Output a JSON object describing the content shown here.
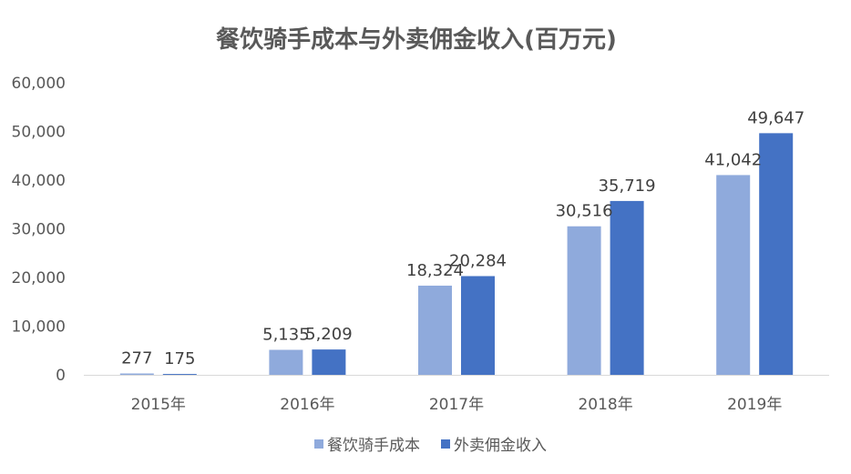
{
  "chart_data": {
    "type": "bar",
    "title": "餐饮骑手成本与外卖佣金收入(百万元)",
    "categories": [
      "2015年",
      "2016年",
      "2017年",
      "2018年",
      "2019年"
    ],
    "series": [
      {
        "name": "餐饮骑手成本",
        "values": [
          277,
          5135,
          18324,
          30516,
          41042
        ],
        "labels": [
          "277",
          "5,135",
          "18,324",
          "30,516",
          "41,042"
        ],
        "color": "#8FAADC"
      },
      {
        "name": "外卖佣金收入",
        "values": [
          175,
          5209,
          20284,
          35719,
          49647
        ],
        "labels": [
          "175",
          "5,209",
          "20,284",
          "35,719",
          "49,647"
        ],
        "color": "#4472C4"
      }
    ],
    "yticks": [
      "0",
      "10,000",
      "20,000",
      "30,000",
      "40,000",
      "50,000",
      "60,000"
    ],
    "ylim": [
      0,
      60000
    ],
    "grid": false,
    "legend": "bottom"
  }
}
